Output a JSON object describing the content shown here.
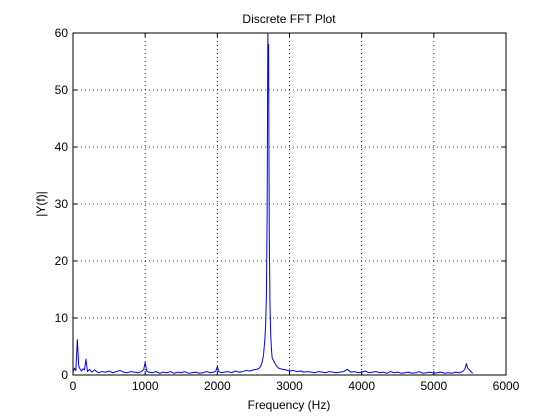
{
  "chart_data": {
    "type": "line",
    "title": "Discrete FFT Plot",
    "xlabel": "Frequency (Hz)",
    "ylabel": "|Y(f)|",
    "xlim": [
      0,
      6000
    ],
    "ylim": [
      0,
      60
    ],
    "xticks": [
      0,
      1000,
      2000,
      3000,
      4000,
      5000,
      6000
    ],
    "yticks": [
      0,
      10,
      20,
      30,
      40,
      50,
      60
    ],
    "grid": true,
    "series": [
      {
        "color": "#0000ff",
        "x": [
          0,
          20,
          40,
          60,
          80,
          100,
          120,
          140,
          160,
          180,
          200,
          230,
          260,
          300,
          350,
          400,
          450,
          500,
          550,
          600,
          650,
          700,
          750,
          800,
          850,
          900,
          950,
          980,
          1000,
          1020,
          1050,
          1100,
          1150,
          1200,
          1250,
          1300,
          1350,
          1400,
          1450,
          1500,
          1550,
          1600,
          1650,
          1700,
          1750,
          1800,
          1850,
          1900,
          1950,
          1980,
          2000,
          2020,
          2050,
          2100,
          2150,
          2200,
          2250,
          2300,
          2350,
          2400,
          2450,
          2500,
          2550,
          2580,
          2600,
          2620,
          2640,
          2660,
          2670,
          2680,
          2690,
          2695,
          2700,
          2705,
          2710,
          2715,
          2720,
          2730,
          2740,
          2750,
          2760,
          2780,
          2800,
          2820,
          2850,
          2900,
          2950,
          3000,
          3050,
          3100,
          3150,
          3200,
          3250,
          3300,
          3350,
          3400,
          3450,
          3500,
          3550,
          3600,
          3650,
          3700,
          3750,
          3800,
          3850,
          3900,
          3950,
          4000,
          4050,
          4100,
          4150,
          4200,
          4250,
          4300,
          4350,
          4400,
          4450,
          4500,
          4550,
          4600,
          4650,
          4700,
          4750,
          4800,
          4850,
          4900,
          4950,
          5000,
          5050,
          5100,
          5150,
          5200,
          5250,
          5300,
          5350,
          5400,
          5430,
          5450,
          5470,
          5500,
          5520,
          5540
        ],
        "y": [
          0.5,
          1.2,
          0.8,
          6.2,
          1.5,
          1.0,
          0.7,
          1.1,
          0.9,
          2.8,
          0.6,
          1.0,
          0.5,
          0.9,
          0.4,
          0.6,
          0.5,
          0.7,
          0.4,
          0.6,
          0.8,
          0.5,
          0.4,
          0.6,
          0.5,
          0.4,
          0.6,
          1.0,
          2.2,
          0.7,
          0.5,
          0.4,
          0.6,
          0.3,
          0.5,
          0.4,
          0.6,
          0.3,
          0.5,
          0.4,
          0.6,
          0.3,
          0.4,
          0.5,
          0.3,
          0.4,
          0.6,
          0.4,
          0.5,
          0.7,
          1.5,
          0.6,
          0.4,
          0.5,
          0.6,
          0.4,
          0.7,
          0.5,
          0.6,
          0.8,
          0.7,
          0.9,
          1.0,
          1.2,
          1.5,
          2.2,
          3.5,
          6.5,
          9.0,
          14.0,
          28.0,
          45.0,
          60.0,
          52.0,
          58.0,
          40.0,
          24.0,
          12.0,
          7.0,
          4.5,
          3.0,
          2.5,
          2.0,
          1.6,
          1.2,
          1.0,
          0.9,
          0.7,
          0.8,
          0.6,
          0.7,
          0.5,
          0.6,
          0.5,
          0.4,
          0.6,
          0.5,
          0.4,
          0.6,
          0.5,
          0.4,
          0.5,
          0.6,
          1.0,
          0.5,
          0.6,
          0.4,
          0.5,
          0.7,
          0.4,
          0.5,
          0.6,
          0.4,
          0.5,
          0.3,
          0.6,
          0.4,
          0.5,
          0.3,
          0.4,
          0.5,
          0.3,
          0.4,
          0.6,
          0.3,
          0.4,
          0.5,
          0.3,
          0.4,
          0.5,
          0.3,
          0.4,
          0.3,
          0.5,
          0.4,
          0.6,
          1.0,
          2.0,
          1.2,
          0.8,
          0.5,
          0.3
        ]
      }
    ]
  }
}
